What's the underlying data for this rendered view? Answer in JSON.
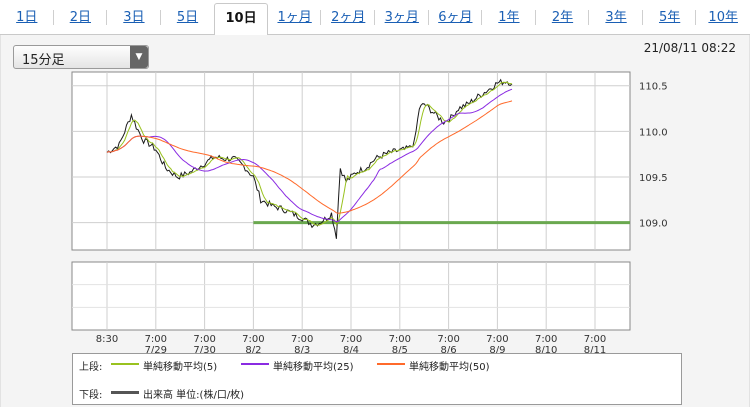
{
  "tabs": [
    "1日",
    "2日",
    "3日",
    "5日",
    "10日",
    "1ヶ月",
    "2ヶ月",
    "3ヶ月",
    "6ヶ月",
    "1年",
    "2年",
    "3年",
    "5年",
    "10年"
  ],
  "active_tab": "10日",
  "interval_select": {
    "value": "15分足",
    "arrow": "▼"
  },
  "timestamp": "21/08/11 08:22",
  "chart_data": {
    "type": "line",
    "y_ticks": [
      "110.5",
      "110.0",
      "109.5",
      "109.0"
    ],
    "ylim": [
      108.7,
      110.65
    ],
    "x_ticks": [
      {
        "t": "8:30",
        "d": ""
      },
      {
        "t": "7:00",
        "d": "7/29"
      },
      {
        "t": "7:00",
        "d": "7/30"
      },
      {
        "t": "7:00",
        "d": "8/2"
      },
      {
        "t": "7:00",
        "d": "8/3"
      },
      {
        "t": "7:00",
        "d": "8/4"
      },
      {
        "t": "7:00",
        "d": "8/5"
      },
      {
        "t": "7:00",
        "d": "8/6"
      },
      {
        "t": "7:00",
        "d": "8/9"
      },
      {
        "t": "7:00",
        "d": "8/10"
      },
      {
        "t": "7:00",
        "d": "8/11"
      }
    ],
    "price_path": [
      [
        0,
        109.77
      ],
      [
        0.25,
        109.85
      ],
      [
        0.4,
        110.05
      ],
      [
        0.5,
        110.18
      ],
      [
        0.6,
        110.05
      ],
      [
        0.75,
        109.9
      ],
      [
        0.9,
        109.85
      ],
      [
        1.0,
        109.8
      ],
      [
        1.2,
        109.6
      ],
      [
        1.45,
        109.5
      ],
      [
        1.7,
        109.55
      ],
      [
        2.0,
        109.65
      ],
      [
        2.2,
        109.72
      ],
      [
        2.4,
        109.7
      ],
      [
        2.6,
        109.7
      ],
      [
        2.8,
        109.62
      ],
      [
        3.0,
        109.5
      ],
      [
        3.15,
        109.25
      ],
      [
        3.4,
        109.18
      ],
      [
        3.6,
        109.15
      ],
      [
        3.8,
        109.1
      ],
      [
        4.0,
        109.05
      ],
      [
        4.2,
        108.98
      ],
      [
        4.35,
        109.0
      ],
      [
        4.5,
        109.05
      ],
      [
        4.6,
        109.1
      ],
      [
        4.7,
        108.85
      ],
      [
        4.78,
        109.6
      ],
      [
        4.9,
        109.45
      ],
      [
        5.1,
        109.55
      ],
      [
        5.3,
        109.6
      ],
      [
        5.5,
        109.7
      ],
      [
        5.7,
        109.75
      ],
      [
        5.9,
        109.78
      ],
      [
        6.1,
        109.8
      ],
      [
        6.2,
        109.82
      ],
      [
        6.3,
        109.88
      ],
      [
        6.4,
        110.25
      ],
      [
        6.5,
        110.3
      ],
      [
        6.7,
        110.2
      ],
      [
        6.9,
        110.1
      ],
      [
        7.05,
        110.15
      ],
      [
        7.2,
        110.25
      ],
      [
        7.4,
        110.3
      ],
      [
        7.6,
        110.38
      ],
      [
        7.8,
        110.45
      ],
      [
        8.0,
        110.53
      ],
      [
        8.2,
        110.55
      ],
      [
        8.3,
        110.52
      ]
    ],
    "support_line": 109.0,
    "support_start": 3.0
  },
  "legend": {
    "upper_label": "上段:",
    "lower_label": "下段:",
    "ma5": "単純移動平均(5)",
    "ma25": "単純移動平均(25)",
    "ma50": "単純移動平均(50)",
    "volume": "出来高 単位:(株/口/枚)",
    "colors": {
      "ma5": "#99c21f",
      "ma25": "#8a2be2",
      "ma50": "#ff6a2b",
      "price": "#1a1a1a",
      "support": "#6aa84f",
      "volume": "#555555"
    }
  }
}
